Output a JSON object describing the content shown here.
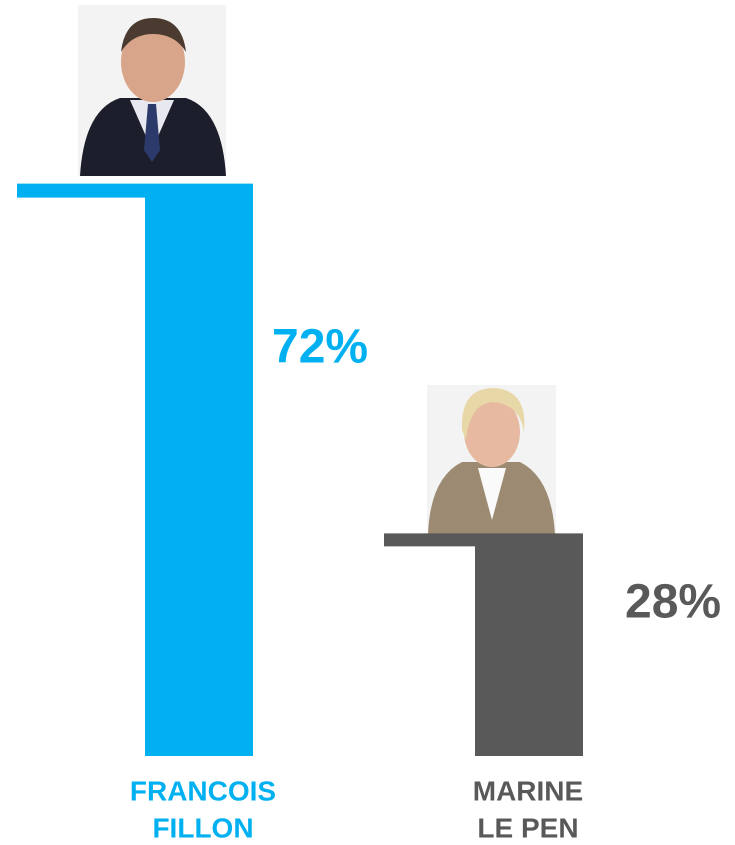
{
  "chart_data": {
    "type": "bar",
    "categories": [
      [
        "FRANCOIS",
        "FILLON"
      ],
      [
        "MARINE",
        "LE PEN"
      ]
    ],
    "values": [
      72,
      28
    ],
    "value_labels": [
      "72%",
      "28%"
    ],
    "colors": [
      "#00b0f0",
      "#595959"
    ]
  }
}
